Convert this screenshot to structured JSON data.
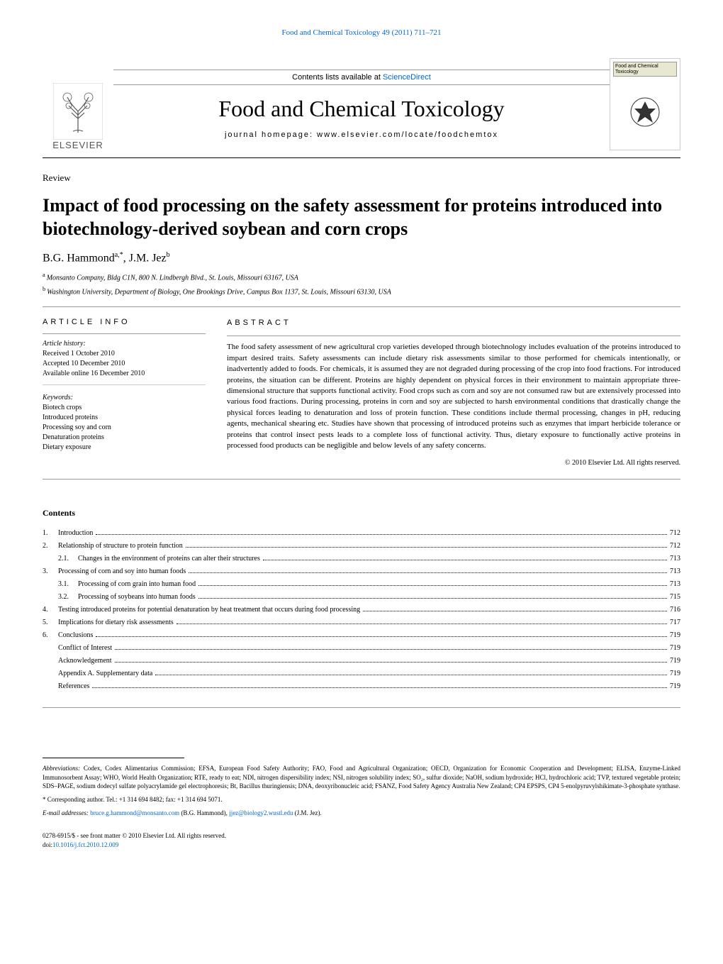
{
  "header": {
    "top_link": "Food and Chemical Toxicology 49 (2011) 711–721",
    "contents_available": "Contents lists available at ",
    "sciencedirect": "ScienceDirect",
    "journal_name": "Food and Chemical Toxicology",
    "homepage_label": "journal homepage: www.elsevier.com/locate/foodchemtox",
    "elsevier": "ELSEVIER",
    "fct_box": "Food and Chemical Toxicology"
  },
  "article": {
    "review_label": "Review",
    "title": "Impact of food processing on the safety assessment for proteins introduced into biotechnology-derived soybean and corn crops",
    "author1": "B.G. Hammond",
    "author1_sup": "a,*",
    "author2": ", J.M. Jez",
    "author2_sup": "b",
    "aff_a": "Monsanto Company, Bldg C1N, 800 N. Lindbergh Blvd., St. Louis, Missouri 63167, USA",
    "aff_b": "Washington University, Department of Biology, One Brookings Drive, Campus Box 1137, St. Louis, Missouri 63130, USA"
  },
  "info": {
    "heading": "ARTICLE INFO",
    "history_label": "Article history:",
    "received": "Received 1 October 2010",
    "accepted": "Accepted 10 December 2010",
    "online": "Available online 16 December 2010",
    "keywords_label": "Keywords:",
    "kw1": "Biotech crops",
    "kw2": "Introduced proteins",
    "kw3": "Processing soy and corn",
    "kw4": "Denaturation proteins",
    "kw5": "Dietary exposure"
  },
  "abstract": {
    "heading": "ABSTRACT",
    "text": "The food safety assessment of new agricultural crop varieties developed through biotechnology includes evaluation of the proteins introduced to impart desired traits. Safety assessments can include dietary risk assessments similar to those performed for chemicals intentionally, or inadvertently added to foods. For chemicals, it is assumed they are not degraded during processing of the crop into food fractions. For introduced proteins, the situation can be different. Proteins are highly dependent on physical forces in their environment to maintain appropriate three-dimensional structure that supports functional activity. Food crops such as corn and soy are not consumed raw but are extensively processed into various food fractions. During processing, proteins in corn and soy are subjected to harsh environmental conditions that drastically change the physical forces leading to denaturation and loss of protein function. These conditions include thermal processing, changes in pH, reducing agents, mechanical shearing etc. Studies have shown that processing of introduced proteins such as enzymes that impart herbicide tolerance or proteins that control insect pests leads to a complete loss of functional activity. Thus, dietary exposure to functionally active proteins in processed food products can be negligible and below levels of any safety concerns.",
    "copyright": "© 2010 Elsevier Ltd. All rights reserved."
  },
  "contents": {
    "heading": "Contents"
  },
  "toc": [
    {
      "level": 0,
      "num": "1.",
      "label": "Introduction",
      "page": "712"
    },
    {
      "level": 0,
      "num": "2.",
      "label": "Relationship of structure to protein function",
      "page": "712"
    },
    {
      "level": 1,
      "num": "2.1.",
      "label": "Changes in the environment of proteins can alter their structures",
      "page": "713"
    },
    {
      "level": 0,
      "num": "3.",
      "label": "Processing of corn and soy into human foods",
      "page": "713"
    },
    {
      "level": 1,
      "num": "3.1.",
      "label": "Processing of corn grain into human food",
      "page": "713"
    },
    {
      "level": 1,
      "num": "3.2.",
      "label": "Processing of soybeans into human foods",
      "page": "715"
    },
    {
      "level": 0,
      "num": "4.",
      "label": "Testing introduced proteins for potential denaturation by heat treatment that occurs during food processing",
      "page": "716"
    },
    {
      "level": 0,
      "num": "5.",
      "label": "Implications for dietary risk assessments",
      "page": "717"
    },
    {
      "level": 0,
      "num": "6.",
      "label": "Conclusions",
      "page": "719"
    },
    {
      "level": 2,
      "num": "",
      "label": "Conflict of Interest",
      "page": "719"
    },
    {
      "level": 2,
      "num": "",
      "label": "Acknowledgement",
      "page": "719"
    },
    {
      "level": 2,
      "num": "",
      "label": "Appendix A.    Supplementary data",
      "page": "719"
    },
    {
      "level": 2,
      "num": "",
      "label": "References",
      "page": "719"
    }
  ],
  "footer": {
    "abbrev_label": "Abbreviations:",
    "abbrev_text": " Codex, Codex Alimentarius Commission; EFSA, European Food Safety Authority; FAO, Food and Agricultural Organization; OECD, Organization for Economic Cooperation and Development; ELISA, Enzyme-Linked Immunosorbent Assay; WHO, World Health Organization; RTE, ready to eat; NDI, nitrogen dispersibility index; NSI, nitrogen solubility index; SO₂, sulfur dioxide; NaOH, sodium hydroxide; HCl, hydrochloric acid; TVP, textured vegetable protein; SDS–PAGE, sodium dodecyl sulfate polyacrylamide gel electrophoresis; Bt, Bacillus thuringiensis; DNA, deoxyribonucleic acid; FSANZ, Food Safety Agency Australia New Zealand; CP4 EPSPS, CP4 5-enolpyruvylshikimate-3-phosphate synthase.",
    "corresponding": "* Corresponding author. Tel.: +1 314 694 8482; fax: +1 314 694 5071.",
    "email_label": "E-mail addresses: ",
    "email1": "bruce.g.hammond@monsanto.com",
    "email1_name": " (B.G. Hammond), ",
    "email2": "jjez@biology2.wustl.edu",
    "email2_name": " (J.M. Jez).",
    "front_matter": "0278-6915/$ - see front matter © 2010 Elsevier Ltd. All rights reserved.",
    "doi_label": "doi:",
    "doi": "10.1016/j.fct.2010.12.009"
  },
  "colors": {
    "link": "#0066cc",
    "rule": "#999999",
    "text": "#000000"
  }
}
